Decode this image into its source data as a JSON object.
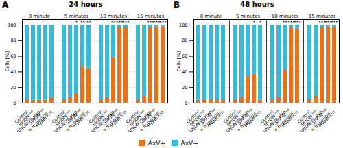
{
  "chart_data": [
    {
      "type": "bar",
      "stacked": true,
      "title": "24 hours",
      "panel_label": "A",
      "y_label": "Cells [%]",
      "groups": [
        "0 minute",
        "5 minutes",
        "10 minutes",
        "15 minutes"
      ],
      "categories": [
        "Control",
        "SPIONᶜᴹᴰ",
        "SPIONᶜᴹᴰ-Hyp",
        "SPIONᶜᴹᴰ\n+ hypericin",
        "Hypericin",
        "Control",
        "SPIONᶜᴹᴰ",
        "SPIONᶜᴹᴰ-Hyp",
        "SPIONᶜᴹᴰ\n+ hypericin",
        "Hypericin",
        "Control",
        "SPIONᶜᴹᴰ",
        "SPIONᶜᴹᴰ-Hyp",
        "SPIONᶜᴹᴰ\n+ hypericin",
        "Hypericin",
        "Control",
        "SPIONᶜᴹᴰ",
        "SPIONᶜᴹᴰ-Hyp",
        "SPIONᶜᴹᴰ\n+ hypericin",
        "Hypericin"
      ],
      "series": [
        {
          "name": "AxV+",
          "color": "#E8721C",
          "values": [
            5,
            4,
            4,
            4,
            7,
            5,
            8,
            13,
            47,
            45,
            5,
            8,
            58,
            97,
            97,
            5,
            10,
            97,
            98,
            98
          ]
        },
        {
          "name": "AxV−",
          "color": "#3AB8D8",
          "values": [
            95,
            96,
            96,
            96,
            93,
            95,
            92,
            87,
            53,
            55,
            95,
            92,
            42,
            3,
            3,
            95,
            90,
            3,
            2,
            2
          ]
        }
      ],
      "stars": [
        null,
        null,
        null,
        null,
        null,
        null,
        null,
        "*",
        "**",
        "**",
        null,
        null,
        "**",
        "***",
        "***",
        null,
        null,
        "***",
        "***",
        "***"
      ],
      "ylim": [
        0,
        107
      ],
      "yticks": [
        0,
        20,
        40,
        60,
        80,
        100
      ],
      "grid": true,
      "legend": "bottom"
    },
    {
      "type": "bar",
      "stacked": true,
      "title": "48 hours",
      "panel_label": "B",
      "y_label": "Cells [%]",
      "groups": [
        "0 minute",
        "5 minutes",
        "10 minutes",
        "15 minutes"
      ],
      "categories": [
        "Control",
        "SPIONᶜᴹᴰ",
        "SPIONᶜᴹᴰ-Hyp",
        "SPIONᶜᴹᴰ\n+ hypericin",
        "Hypericin",
        "Control",
        "SPIONᶜᴹᴰ",
        "SPIONᶜᴹᴰ-Hyp",
        "SPIONᶜᴹᴰ\n+ hypericin",
        "Hypericin",
        "Control",
        "SPIONᶜᴹᴰ",
        "SPIONᶜᴹᴰ-Hyp",
        "SPIONᶜᴹᴰ\n+ hypericin",
        "Hypericin",
        "Control",
        "SPIONᶜᴹᴰ",
        "SPIONᶜᴹᴰ-Hyp",
        "SPIONᶜᴹᴰ\n+ hypericin",
        "Hypericin"
      ],
      "series": [
        {
          "name": "AxV+",
          "color": "#E8721C",
          "values": [
            4,
            5,
            5,
            5,
            5,
            5,
            8,
            35,
            37,
            4,
            5,
            8,
            43,
            97,
            95,
            5,
            10,
            97,
            98,
            98
          ]
        },
        {
          "name": "AxV−",
          "color": "#3AB8D8",
          "values": [
            96,
            95,
            95,
            95,
            95,
            95,
            92,
            65,
            63,
            96,
            95,
            92,
            57,
            3,
            5,
            95,
            90,
            3,
            2,
            2
          ]
        }
      ],
      "stars": [
        null,
        null,
        null,
        null,
        null,
        null,
        null,
        null,
        "*",
        "*",
        null,
        null,
        "**",
        "***",
        "***",
        null,
        null,
        "***",
        "***",
        "***"
      ],
      "ylim": [
        0,
        107
      ],
      "yticks": [
        0,
        20,
        40,
        60,
        80,
        100
      ],
      "grid": true,
      "legend": "bottom"
    }
  ]
}
